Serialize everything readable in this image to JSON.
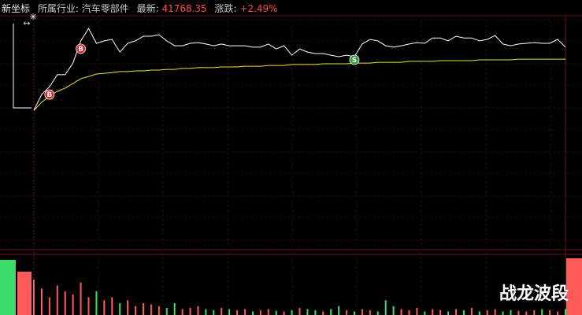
{
  "header": {
    "title": "新坐标",
    "industry_label": "所属行业:",
    "industry": "汽车零部件",
    "latest_label": "最新:",
    "latest": "41768.35",
    "change_label": "涨跌:",
    "change": "+2.49%"
  },
  "watermark": "战龙波段",
  "chart_data": {
    "type": "line",
    "ylim": [
      -5.75,
      3.78
    ],
    "series": [
      {
        "name": "price",
        "color": "#ffffff",
        "values": [
          -0.1,
          0.55,
          0.87,
          1.36,
          1.36,
          1.84,
          2.75,
          3.26,
          2.65,
          2.75,
          2.81,
          2.29,
          2.65,
          2.75,
          2.94,
          2.94,
          3.0,
          2.75,
          2.55,
          2.55,
          2.65,
          2.68,
          2.62,
          2.55,
          2.62,
          2.55,
          2.55,
          2.55,
          2.49,
          2.49,
          2.62,
          2.42,
          2.55,
          2.16,
          2.42,
          2.29,
          2.23,
          2.23,
          2.16,
          2.1,
          2.16,
          2.1,
          2.62,
          2.81,
          2.75,
          2.55,
          2.49,
          2.55,
          2.62,
          2.68,
          2.65,
          2.87,
          2.87,
          2.75,
          2.94,
          2.87,
          2.87,
          2.75,
          2.81,
          2.97,
          2.62,
          2.55,
          2.62,
          2.65,
          2.68,
          2.65,
          2.65,
          2.81,
          2.49
        ]
      },
      {
        "name": "average",
        "color": "#e6e62e",
        "values": [
          -0.1,
          0.23,
          0.48,
          0.68,
          0.81,
          1.0,
          1.2,
          1.29,
          1.39,
          1.42,
          1.45,
          1.49,
          1.49,
          1.52,
          1.52,
          1.55,
          1.55,
          1.58,
          1.58,
          1.62,
          1.62,
          1.65,
          1.65,
          1.65,
          1.68,
          1.68,
          1.68,
          1.71,
          1.71,
          1.71,
          1.74,
          1.74,
          1.74,
          1.78,
          1.78,
          1.78,
          1.78,
          1.81,
          1.81,
          1.81,
          1.81,
          1.84,
          1.84,
          1.84,
          1.87,
          1.87,
          1.87,
          1.87,
          1.91,
          1.91,
          1.91,
          1.91,
          1.94,
          1.94,
          1.94,
          1.94,
          1.94,
          1.97,
          1.97,
          1.97,
          1.97,
          1.97,
          2.0,
          2.0,
          2.0,
          2.0,
          2.0,
          2.0,
          2.0
        ]
      }
    ],
    "signals": [
      {
        "label": "B",
        "index": 2,
        "color": "#d9252b"
      },
      {
        "label": "B",
        "index": 6,
        "color": "#d9252b"
      },
      {
        "label": "S",
        "index": 41,
        "color": "#2e9e3e"
      }
    ],
    "volume": {
      "up_color": "#ff5a5a",
      "down_color": "#3ddc6a",
      "ylim": [
        0,
        100
      ],
      "values": [
        60,
        45,
        30,
        50,
        40,
        35,
        55,
        30,
        40,
        25,
        30,
        20,
        25,
        15,
        20,
        18,
        15,
        12,
        20,
        10,
        12,
        15,
        10,
        8,
        12,
        10,
        8,
        10,
        6,
        8,
        10,
        7,
        6,
        8,
        12,
        10,
        8,
        6,
        10,
        15,
        8,
        6,
        10,
        8,
        6,
        25,
        15,
        10,
        8,
        12,
        6,
        10,
        8,
        6,
        10,
        8,
        12,
        6,
        8,
        10,
        6,
        8,
        7,
        6,
        8,
        10,
        8,
        6,
        10
      ]
    }
  }
}
